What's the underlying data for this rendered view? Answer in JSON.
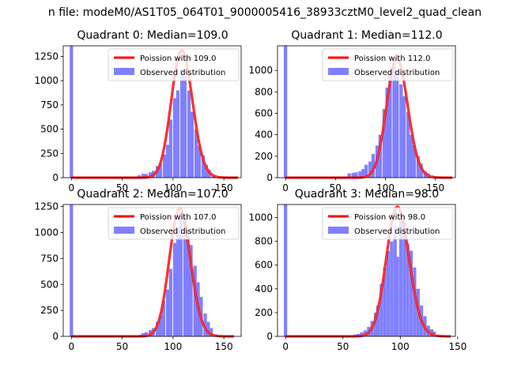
{
  "figure": {
    "suptitle": "n file: modeM0/AS1T05_064T01_9000005416_38933cztM0_level2_quad_clean"
  },
  "chart_data": [
    {
      "type": "bar",
      "title": "Quadrant 0: Median=109.0",
      "xlim": [
        -8,
        167
      ],
      "ylim": [
        0,
        1360
      ],
      "xticks": [
        0,
        50,
        100,
        150
      ],
      "yticks": [
        0,
        250,
        500,
        750,
        1000,
        1250
      ],
      "legend": {
        "placement": "upper right",
        "entries": [
          "Poission with 109.0",
          "Observed distribution"
        ]
      },
      "grid": false,
      "bin_width": 3.3,
      "zero_bar": 1360,
      "bins": [
        [
          58,
          3
        ],
        [
          62,
          10
        ],
        [
          65,
          25
        ],
        [
          69,
          40
        ],
        [
          72,
          38
        ],
        [
          76,
          55
        ],
        [
          79,
          70
        ],
        [
          83,
          120
        ],
        [
          86,
          150
        ],
        [
          90,
          240
        ],
        [
          93,
          340
        ],
        [
          96,
          600
        ],
        [
          100,
          820
        ],
        [
          103,
          900
        ],
        [
          107,
          1120
        ],
        [
          110,
          1050
        ],
        [
          114,
          900
        ],
        [
          117,
          680
        ],
        [
          121,
          500
        ],
        [
          124,
          330
        ],
        [
          128,
          230
        ],
        [
          131,
          130
        ],
        [
          134,
          80
        ],
        [
          138,
          30
        ],
        [
          141,
          10
        ],
        [
          145,
          4
        ]
      ],
      "poisson_mean": 109,
      "poisson_scale": 1310,
      "curve_range": [
        0,
        164
      ],
      "colors": {
        "bars": "#8080ff",
        "curve": "#ff0000"
      }
    },
    {
      "type": "bar",
      "title": "Quadrant 1: Median=112.0",
      "xlim": [
        -8,
        170
      ],
      "ylim": [
        0,
        1230
      ],
      "xticks": [
        0,
        50,
        100,
        150
      ],
      "yticks": [
        0,
        200,
        400,
        600,
        800,
        1000
      ],
      "legend": {
        "placement": "upper right",
        "entries": [
          "Poission with 112.0",
          "Observed distribution"
        ]
      },
      "grid": false,
      "bin_width": 3.4,
      "zero_bar": 1230,
      "bins": [
        [
          58,
          5
        ],
        [
          62,
          40
        ],
        [
          66,
          45
        ],
        [
          69,
          50
        ],
        [
          73,
          60
        ],
        [
          76,
          80
        ],
        [
          79,
          120
        ],
        [
          83,
          150
        ],
        [
          86,
          220
        ],
        [
          90,
          300
        ],
        [
          93,
          400
        ],
        [
          97,
          640
        ],
        [
          100,
          840
        ],
        [
          103,
          1000
        ],
        [
          107,
          1050
        ],
        [
          110,
          1000
        ],
        [
          114,
          870
        ],
        [
          117,
          760
        ],
        [
          121,
          610
        ],
        [
          124,
          400
        ],
        [
          127,
          300
        ],
        [
          131,
          200
        ],
        [
          134,
          130
        ],
        [
          138,
          60
        ],
        [
          141,
          40
        ],
        [
          145,
          20
        ]
      ],
      "poisson_mean": 112,
      "poisson_scale": 1110,
      "curve_range": [
        0,
        167
      ],
      "colors": {
        "bars": "#8080ff",
        "curve": "#ff0000"
      }
    },
    {
      "type": "bar",
      "title": "Quadrant 2: Median=107.0",
      "xlim": [
        -8,
        167
      ],
      "ylim": [
        0,
        1270
      ],
      "xticks": [
        0,
        50,
        100,
        150
      ],
      "yticks": [
        0,
        250,
        500,
        750,
        1000,
        1250
      ],
      "legend": {
        "placement": "upper right",
        "entries": [
          "Poission with 107.0",
          "Observed distribution"
        ]
      },
      "grid": false,
      "bin_width": 3.3,
      "zero_bar": 1270,
      "bins": [
        [
          55,
          3
        ],
        [
          62,
          8
        ],
        [
          66,
          15
        ],
        [
          69,
          30
        ],
        [
          72,
          40
        ],
        [
          76,
          60
        ],
        [
          79,
          80
        ],
        [
          83,
          140
        ],
        [
          86,
          200
        ],
        [
          89,
          340
        ],
        [
          93,
          450
        ],
        [
          96,
          650
        ],
        [
          100,
          900
        ],
        [
          103,
          1050
        ],
        [
          106,
          1200
        ],
        [
          110,
          1130
        ],
        [
          113,
          1020
        ],
        [
          116,
          880
        ],
        [
          120,
          680
        ],
        [
          123,
          520
        ],
        [
          126,
          380
        ],
        [
          130,
          220
        ],
        [
          133,
          140
        ],
        [
          136,
          80
        ],
        [
          140,
          20
        ]
      ],
      "poisson_mean": 107,
      "poisson_scale": 1230,
      "curve_range": [
        0,
        160
      ],
      "colors": {
        "bars": "#8080ff",
        "curve": "#ff0000"
      }
    },
    {
      "type": "bar",
      "title": "Quadrant 3: Median=98.0",
      "xlim": [
        -7,
        148
      ],
      "ylim": [
        0,
        1110
      ],
      "xticks": [
        0,
        50,
        100,
        150
      ],
      "yticks": [
        0,
        200,
        400,
        600,
        800,
        1000
      ],
      "legend": {
        "placement": "upper right",
        "entries": [
          "Poission with 98.0",
          "Observed distribution"
        ]
      },
      "grid": false,
      "bin_width": 2.9,
      "zero_bar": 1110,
      "bins": [
        [
          53,
          5
        ],
        [
          56,
          10
        ],
        [
          59,
          15
        ],
        [
          62,
          20
        ],
        [
          65,
          35
        ],
        [
          68,
          50
        ],
        [
          71,
          80
        ],
        [
          74,
          130
        ],
        [
          77,
          200
        ],
        [
          79,
          260
        ],
        [
          82,
          440
        ],
        [
          85,
          580
        ],
        [
          88,
          720
        ],
        [
          91,
          800
        ],
        [
          94,
          930
        ],
        [
          96,
          670
        ],
        [
          99,
          1000
        ],
        [
          102,
          960
        ],
        [
          105,
          780
        ],
        [
          108,
          720
        ],
        [
          111,
          580
        ],
        [
          114,
          400
        ],
        [
          117,
          260
        ],
        [
          120,
          170
        ],
        [
          123,
          90
        ],
        [
          126,
          60
        ],
        [
          128,
          40
        ]
      ],
      "poisson_mean": 98,
      "poisson_scale": 1090,
      "curve_range": [
        0,
        144
      ],
      "colors": {
        "bars": "#8080ff",
        "curve": "#ff0000"
      }
    }
  ]
}
